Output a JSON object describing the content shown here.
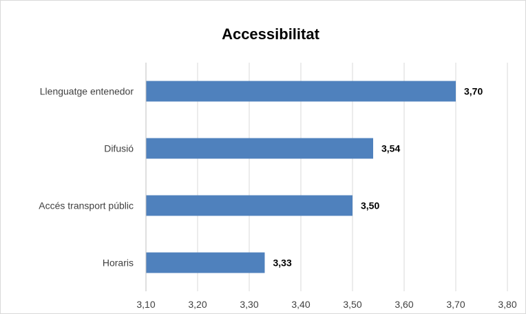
{
  "chart_data": {
    "type": "bar",
    "orientation": "horizontal",
    "title": "Accessibilitat",
    "categories": [
      "Llenguatge entenedor",
      "Difusió",
      "Accés transport públic",
      "Horaris"
    ],
    "values": [
      3.7,
      3.54,
      3.5,
      3.33
    ],
    "data_labels": [
      "3,70",
      "3,54",
      "3,50",
      "3,33"
    ],
    "xlim": [
      3.1,
      3.8
    ],
    "x_ticks": [
      3.1,
      3.2,
      3.3,
      3.4,
      3.5,
      3.6,
      3.7,
      3.8
    ],
    "x_tick_labels": [
      "3,10",
      "3,20",
      "3,30",
      "3,40",
      "3,50",
      "3,60",
      "3,70",
      "3,80"
    ],
    "xlabel": "",
    "ylabel": "",
    "grid": "vertical",
    "legend": "none",
    "colors": {
      "bar": "#4f81bd",
      "grid": "#d9d9d9",
      "axis": "#bfbfbf",
      "text": "#404040"
    }
  }
}
